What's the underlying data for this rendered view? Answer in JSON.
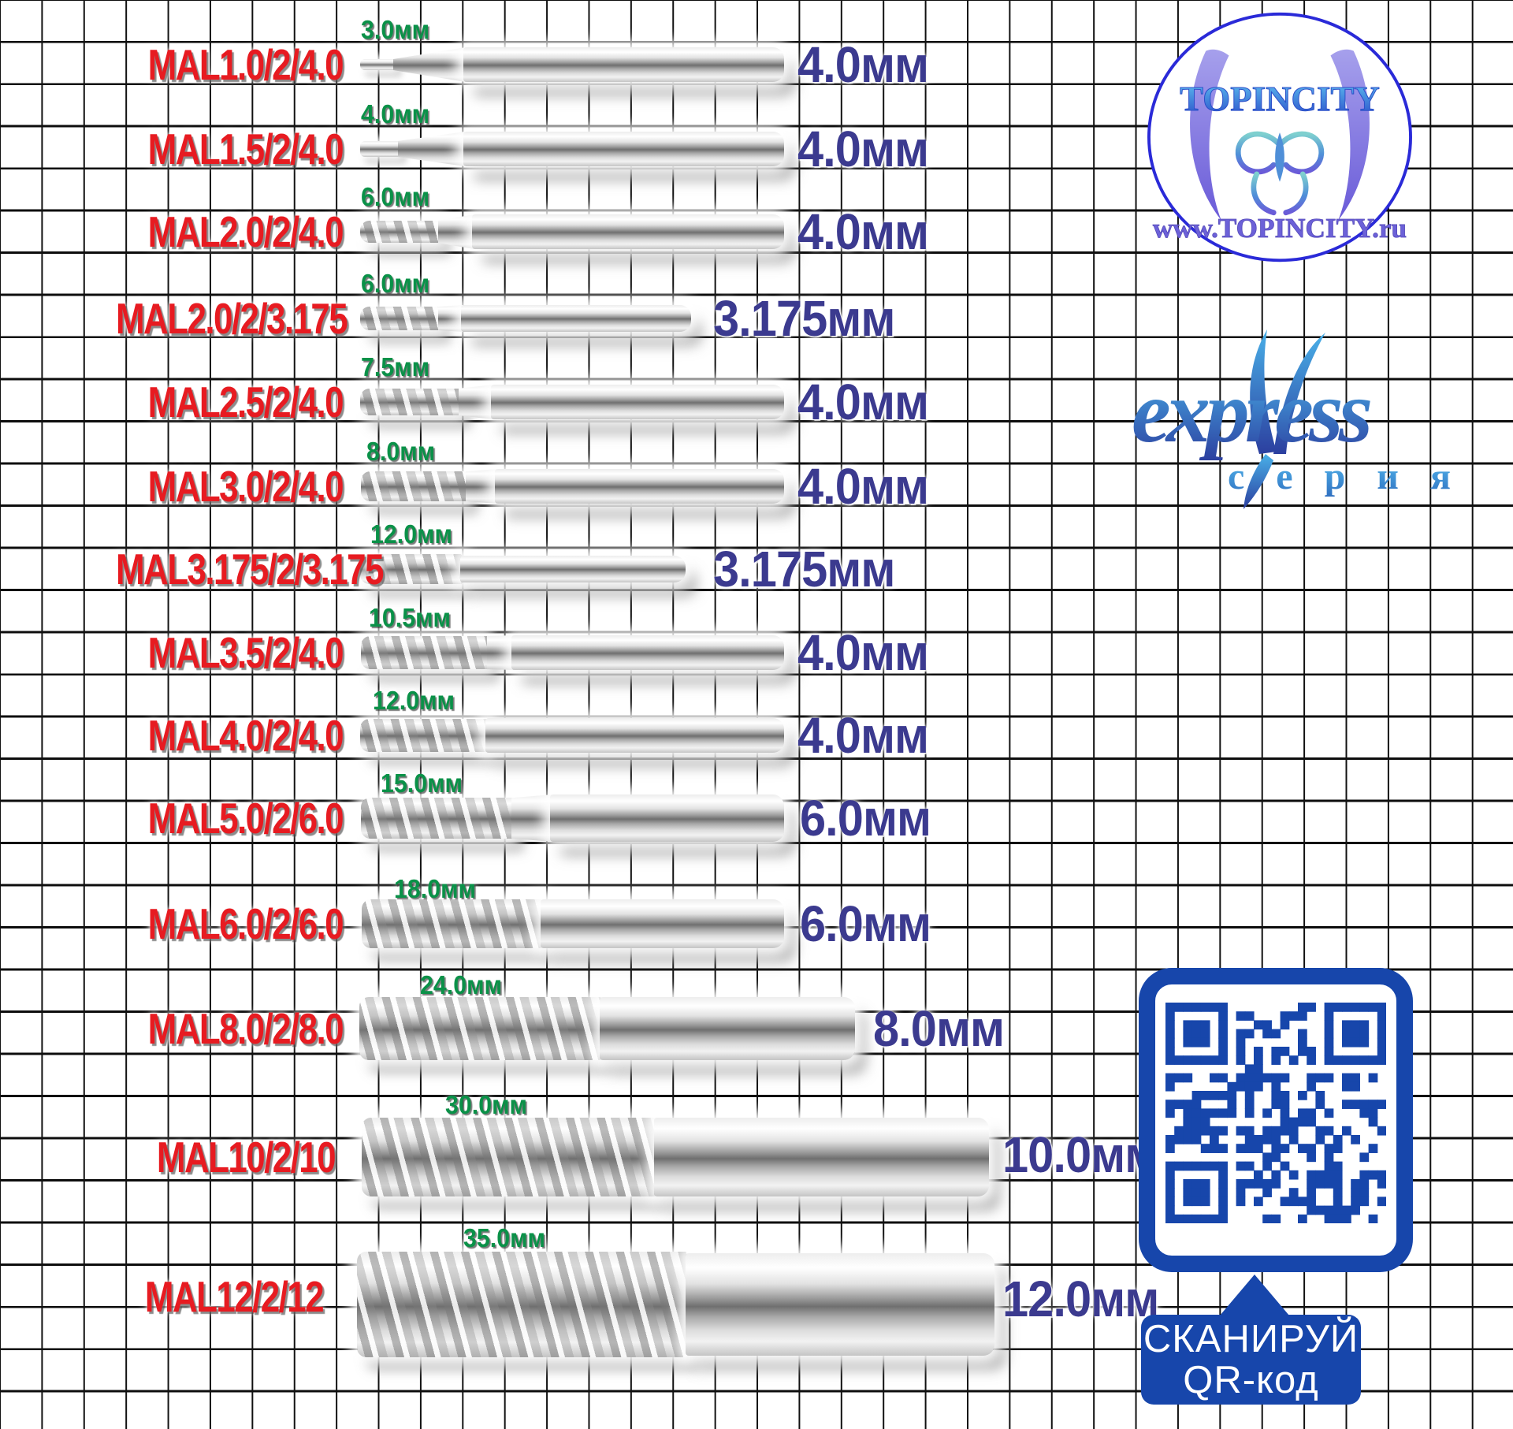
{
  "branding": {
    "logo_title": "TOPINCITY",
    "logo_url": "www.TOPINCITY.ru",
    "series_name": "express",
    "series_subtitle": "с е р и я"
  },
  "qr_banner": {
    "line1": "СКАНИРУЙ",
    "line2": "QR-код"
  },
  "colors": {
    "model_red": "#e71b21",
    "flute_green": "#0a9148",
    "dia_blue": "#3b3a8f",
    "qr_blue": "#1746ab",
    "logo_blue": "#2a2ad8"
  },
  "rows": [
    {
      "model": "MAL1.0/2/4.0",
      "flute_length": "3.0мм",
      "shank_dia": "4.0мм"
    },
    {
      "model": "MAL1.5/2/4.0",
      "flute_length": "4.0мм",
      "shank_dia": "4.0мм"
    },
    {
      "model": "MAL2.0/2/4.0",
      "flute_length": "6.0мм",
      "shank_dia": "4.0мм"
    },
    {
      "model": "MAL2.0/2/3.175",
      "flute_length": "6.0мм",
      "shank_dia": "3.175мм"
    },
    {
      "model": "MAL2.5/2/4.0",
      "flute_length": "7.5мм",
      "shank_dia": "4.0мм"
    },
    {
      "model": "MAL3.0/2/4.0",
      "flute_length": "8.0мм",
      "shank_dia": "4.0мм"
    },
    {
      "model": "MAL3.175/2/3.175",
      "flute_length": "12.0мм",
      "shank_dia": "3.175мм"
    },
    {
      "model": "MAL3.5/2/4.0",
      "flute_length": "10.5мм",
      "shank_dia": "4.0мм"
    },
    {
      "model": "MAL4.0/2/4.0",
      "flute_length": "12.0мм",
      "shank_dia": "4.0мм"
    },
    {
      "model": "MAL5.0/2/6.0",
      "flute_length": "15.0мм",
      "shank_dia": "6.0мм"
    },
    {
      "model": "MAL6.0/2/6.0",
      "flute_length": "18.0мм",
      "shank_dia": "6.0мм"
    },
    {
      "model": "MAL8.0/2/8.0",
      "flute_length": "24.0мм",
      "shank_dia": "8.0мм"
    },
    {
      "model": "MAL10/2/10",
      "flute_length": "30.0мм",
      "shank_dia": "10.0мм"
    },
    {
      "model": "MAL12/2/12",
      "flute_length": "35.0мм",
      "shank_dia": "12.0мм"
    }
  ]
}
